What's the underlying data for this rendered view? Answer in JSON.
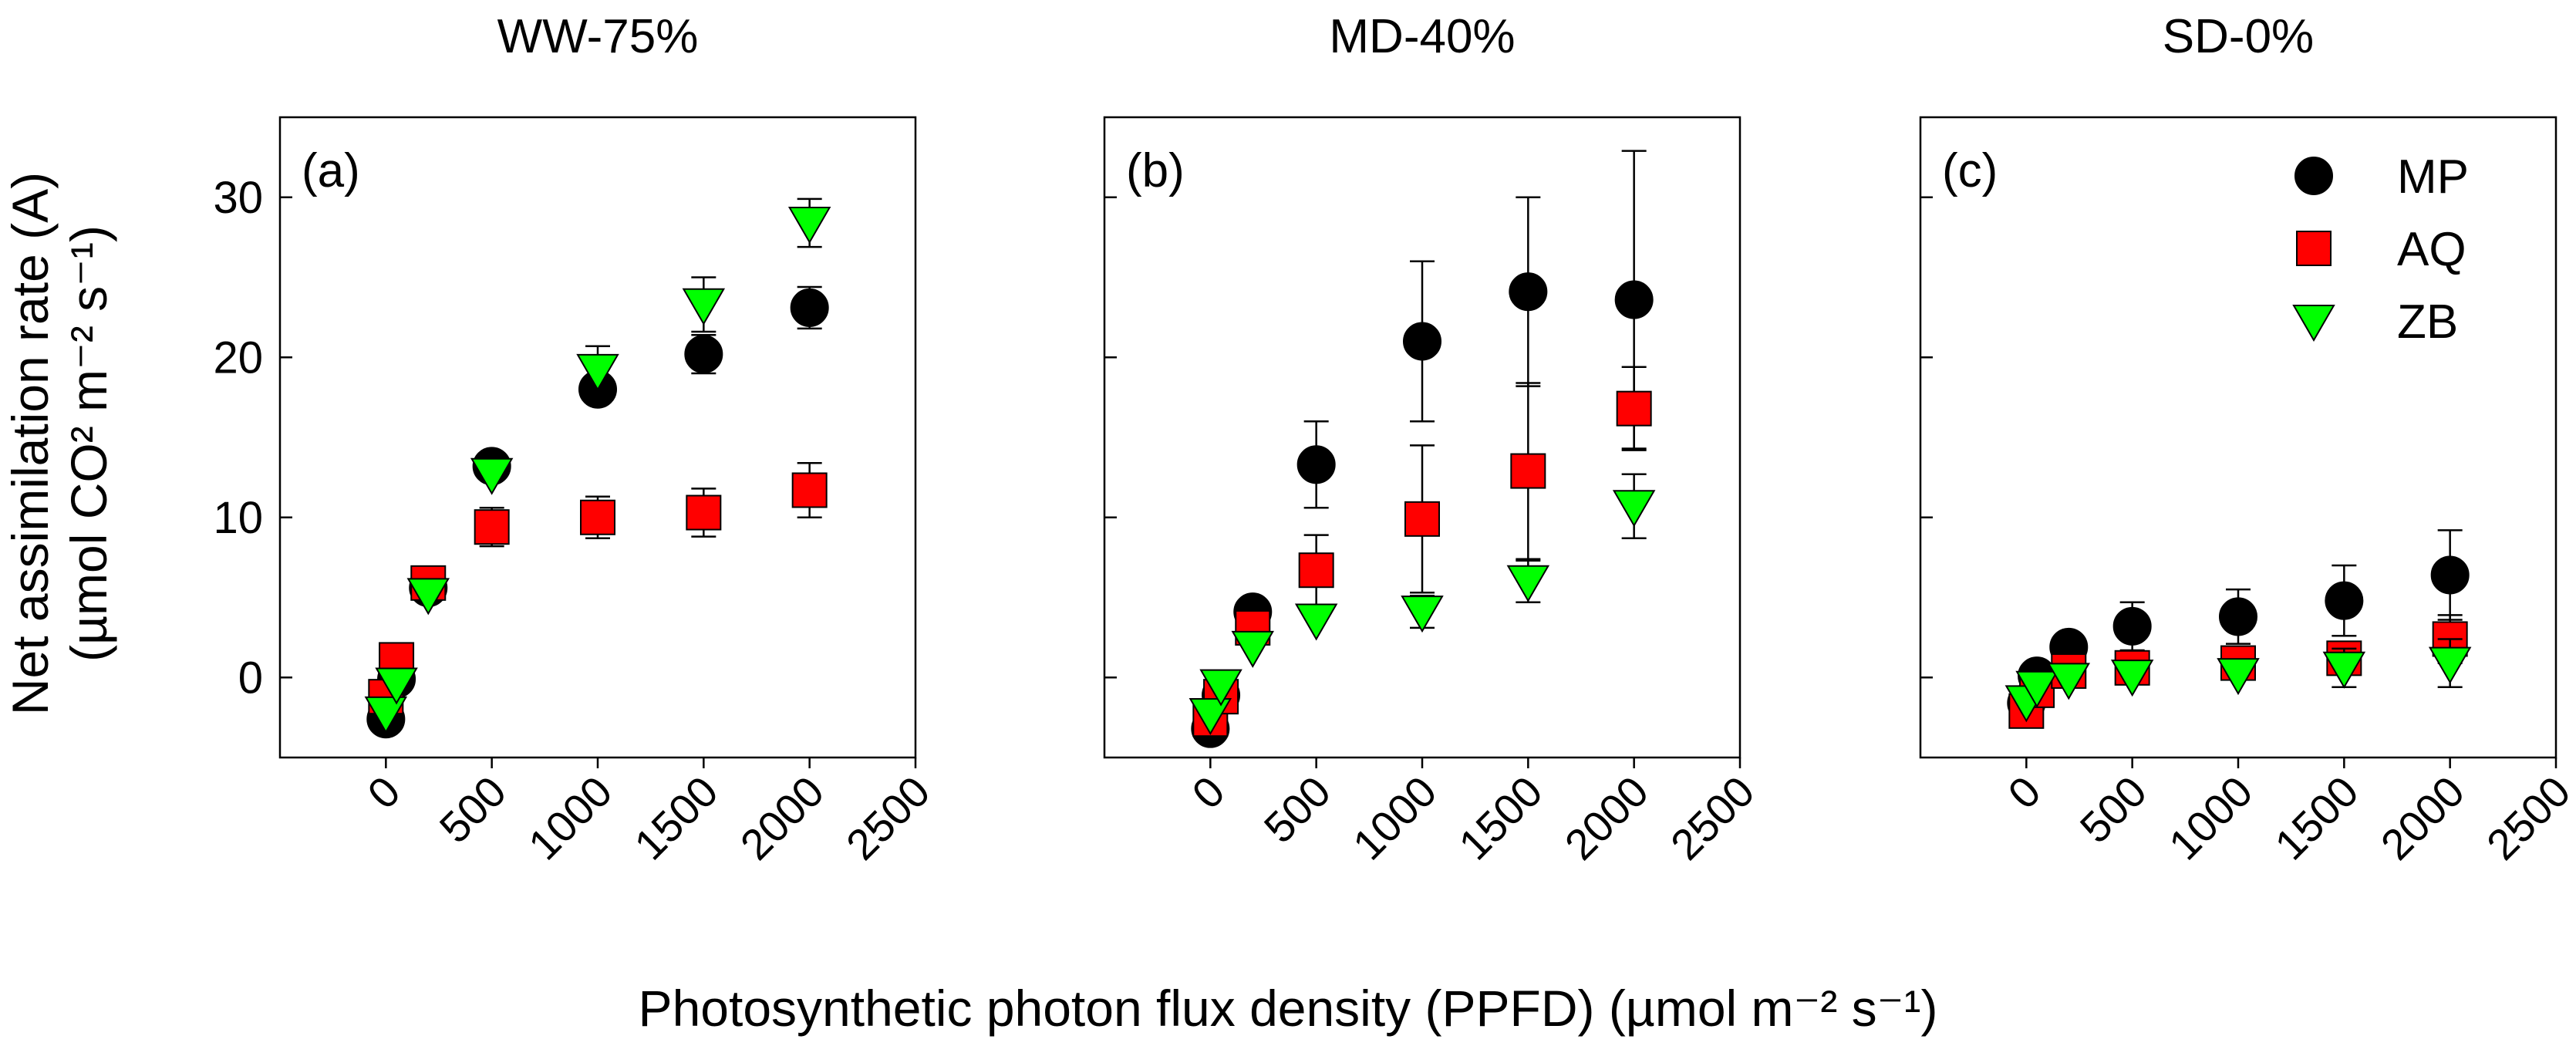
{
  "figure": {
    "x_axis_label": "Photosynthetic photon flux density (PPFD) (µmol m⁻² s⁻¹)",
    "y_axis_label_line1": "Net assimilation rate (A)",
    "y_axis_label_line2": "(µmol CO² m⁻² s⁻¹)"
  },
  "legend": [
    {
      "name": "MP",
      "marker": "circle",
      "color": "#000000"
    },
    {
      "name": "AQ",
      "marker": "square",
      "color": "#ff0000"
    },
    {
      "name": "ZB",
      "marker": "triangle-down",
      "color": "#00ff00"
    }
  ],
  "chart_data": [
    {
      "type": "scatter",
      "title": "WW-75%",
      "panel_label": "(a)",
      "xlabel": "Photosynthetic photon flux density (PPFD) (µmol m⁻² s⁻¹)",
      "ylabel": "Net assimilation rate (A) (µmol CO² m⁻² s⁻¹)",
      "xlim": [
        -500,
        2500
      ],
      "ylim": [
        -5,
        35
      ],
      "x_ticks": [
        0,
        500,
        1000,
        1500,
        2000,
        2500
      ],
      "x_tick_labels": [
        "0",
        "500",
        "1000",
        "1500",
        "2000",
        "2500"
      ],
      "y_ticks": [
        0,
        10,
        20,
        30
      ],
      "y_tick_labels": [
        "0",
        "10",
        "20",
        "30"
      ],
      "x": [
        0,
        50,
        200,
        500,
        1000,
        1500,
        2000
      ],
      "series": [
        {
          "name": "MP",
          "values": [
            -2.6,
            -0.1,
            5.6,
            13.2,
            18.0,
            20.2,
            23.1
          ],
          "errors": [
            0.6,
            0.6,
            0.5,
            0.6,
            0.6,
            1.2,
            1.3
          ]
        },
        {
          "name": "AQ",
          "values": [
            -1.2,
            1.1,
            5.9,
            9.4,
            10.0,
            10.3,
            11.7
          ],
          "errors": [
            0.5,
            0.5,
            0.5,
            1.2,
            1.3,
            1.5,
            1.7
          ]
        },
        {
          "name": "ZB",
          "values": [
            -2.2,
            -0.4,
            5.2,
            12.7,
            19.2,
            23.3,
            28.4
          ],
          "errors": [
            0.5,
            0.5,
            0.5,
            0.8,
            1.5,
            1.7,
            1.5
          ]
        }
      ]
    },
    {
      "type": "scatter",
      "title": "MD-40%",
      "panel_label": "(b)",
      "xlabel": "Photosynthetic photon flux density (PPFD) (µmol m⁻² s⁻¹)",
      "ylabel": "Net assimilation rate (A) (µmol CO² m⁻² s⁻¹)",
      "xlim": [
        -500,
        2500
      ],
      "ylim": [
        -5,
        35
      ],
      "x_ticks": [
        0,
        500,
        1000,
        1500,
        2000,
        2500
      ],
      "x_tick_labels": [
        "0",
        "500",
        "1000",
        "1500",
        "2000",
        "2500"
      ],
      "y_ticks": [
        0,
        10,
        20,
        30
      ],
      "y_tick_labels": [],
      "x": [
        0,
        50,
        200,
        500,
        1000,
        1500,
        2000
      ],
      "series": [
        {
          "name": "MP",
          "values": [
            -3.2,
            -1.1,
            4.1,
            13.3,
            21.0,
            24.1,
            23.6
          ],
          "errors": [
            0.5,
            0.5,
            0.5,
            2.7,
            5.0,
            5.9,
            9.3
          ]
        },
        {
          "name": "AQ",
          "values": [
            -2.6,
            -1.2,
            3.1,
            6.7,
            9.9,
            12.9,
            16.8
          ],
          "errors": [
            0.5,
            0.5,
            0.6,
            2.2,
            4.6,
            5.5,
            2.6
          ]
        },
        {
          "name": "ZB",
          "values": [
            -2.3,
            -0.5,
            1.9,
            3.6,
            4.1,
            6.0,
            10.7
          ],
          "errors": [
            0.5,
            0.5,
            0.6,
            0.8,
            1.0,
            1.3,
            2.0
          ]
        }
      ]
    },
    {
      "type": "scatter",
      "title": "SD-0%",
      "panel_label": "(c)",
      "xlabel": "Photosynthetic photon flux density (PPFD) (µmol m⁻² s⁻¹)",
      "ylabel": "Net assimilation rate (A) (µmol CO² m⁻² s⁻¹)",
      "xlim": [
        -500,
        2500
      ],
      "ylim": [
        -5,
        35
      ],
      "x_ticks": [
        0,
        500,
        1000,
        1500,
        2000,
        2500
      ],
      "x_tick_labels": [
        "0",
        "500",
        "1000",
        "1500",
        "2000",
        "2500"
      ],
      "y_ticks": [
        0,
        10,
        20,
        30
      ],
      "y_tick_labels": [],
      "legend": "top-right",
      "x": [
        0,
        50,
        200,
        500,
        1000,
        1500,
        2000
      ],
      "series": [
        {
          "name": "MP",
          "values": [
            -1.6,
            0.1,
            1.9,
            3.2,
            3.8,
            4.8,
            6.4
          ],
          "errors": [
            0.3,
            0.4,
            0.4,
            1.5,
            1.7,
            2.2,
            2.8
          ]
        },
        {
          "name": "AQ",
          "values": [
            -2.1,
            -0.8,
            0.4,
            0.6,
            0.9,
            1.2,
            2.4
          ],
          "errors": [
            0.3,
            0.3,
            0.4,
            0.6,
            0.8,
            1.0,
            1.5
          ]
        },
        {
          "name": "ZB",
          "values": [
            -1.5,
            -0.6,
            -0.1,
            0.1,
            0.2,
            0.6,
            0.9
          ],
          "errors": [
            0.3,
            0.3,
            0.3,
            0.4,
            0.5,
            1.2,
            1.5
          ]
        }
      ]
    }
  ]
}
